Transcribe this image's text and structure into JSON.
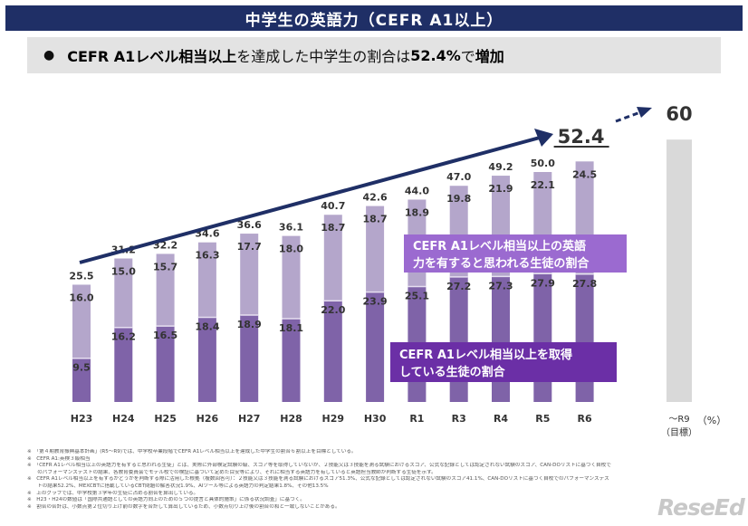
{
  "title": "中学生の英語力（CEFR A1以上）",
  "subtitle": {
    "bullet": "●",
    "part1": "CEFR A1レベル相当以上",
    "part2": "を達成した中学生の割合は",
    "part3": "52.4%",
    "part4": "で",
    "part5": "増加"
  },
  "chart_data": {
    "type": "bar",
    "stacked": true,
    "categories": [
      "H23",
      "H24",
      "H25",
      "H26",
      "H27",
      "H28",
      "H29",
      "H30",
      "R1",
      "R3",
      "R4",
      "R5",
      "R6"
    ],
    "series": [
      {
        "name": "CEFR A1レベル相当以上を取得している生徒の割合",
        "values": [
          9.5,
          16.2,
          16.5,
          18.4,
          18.9,
          18.1,
          22.0,
          23.9,
          25.1,
          27.2,
          27.3,
          27.9,
          27.8
        ]
      },
      {
        "name": "CEFR A1レベル相当以上の英語力を有すると思われる生徒の割合",
        "values": [
          16.0,
          15.0,
          15.7,
          16.3,
          17.7,
          18.0,
          18.7,
          18.7,
          18.9,
          19.8,
          21.9,
          22.1,
          24.5
        ]
      }
    ],
    "totals": [
      "25.5",
      "31.2",
      "32.2",
      "34.6",
      "36.6",
      "36.1",
      "40.7",
      "42.6",
      "44.0",
      "47.0",
      "49.2",
      "50.0",
      "52.4"
    ],
    "bottom_labels": [
      "9.5",
      "16.2",
      "16.5",
      "18.4",
      "18.9",
      "18.1",
      "22.0",
      "23.9",
      "25.1",
      "27.2",
      "27.3",
      "27.9",
      "27.8"
    ],
    "top_labels": [
      "16.0",
      "15.0",
      "15.7",
      "16.3",
      "17.7",
      "18.0",
      "18.7",
      "18.7",
      "18.9",
      "19.8",
      "21.9",
      "22.1",
      "24.5"
    ],
    "target": {
      "value": 60,
      "label": "60",
      "category_line1": "〜R9",
      "category_line2": "（目標）"
    },
    "unit": "（%）",
    "ylim": [
      0,
      60
    ],
    "legend": {
      "top": [
        "CEFR A1レベル相当以上の英語",
        "力を有すると思われる生徒の割合"
      ],
      "bottom": [
        "CEFR A1レベル相当以上を取得",
        "している生徒の割合"
      ]
    },
    "colors": {
      "bottom": "#7f63a8",
      "top": "#b4a6cb",
      "bottom_line": "#e6dff0",
      "target": "#d9d9d9",
      "arrow": "#1f2f66",
      "legend_top": "#9b6ad0",
      "legend_bottom": "#6b2fa6",
      "title_bg": "#1f2f66"
    }
  },
  "notes": [
    "※　「第４期教育振興基本計画」(R5〜R9)では、中学校卒業段階でCEFR A1レベル相当以上を達成した中学生の割合６割以上を目標としている。",
    "※　CEFR A1:英検３級相当",
    "※　「CEFR A1レベル相当以上の英語力を有すると思われる生徒」とは、実際に外部検定試験の級、スコア等を取得していないが、２技能又は３技能を測る試験におけるスコア、公式な記録としては認定されない試験のスコア、CAN-DOリストに基づく自校で",
    "　　のパフォーマンステストの結果、各教育委員会でモデル校での検証に基づいて定めた目安等により、それに相当する英語力を有していると英語担当教師が判断する生徒を示す。",
    "※　CEFR A1レベル相当以上を有するかどうかを判断する際に活用した根拠（複数回答可）：２技能又は３技能を測る試験におけるスコア51.3%、公式な記録としては認定されない試験のスコア41.1%、CAN-DOリストに基づく自校でのパフォーマンステス",
    "　　トの結果52.2%、MEXCBTに搭載しているCBT問題の解答状況1.9%、AIツール等による英語力の判定結果1.8%、その他13.5%",
    "※　上のグラフでは、中学校第３学年の生徒に占める割合を算出している。",
    "※　H23・H24の数値は「国際共通語としての英語力向上のための５つの提言と具体的施策」に係る状況調査」に基づく。",
    "※　割合の合計は、小数点第２位切り上げ前の数字を合計して算出しているため、小数点切り上げ後の割合の和と一致しないことがある。"
  ],
  "logo": "ReseEd"
}
